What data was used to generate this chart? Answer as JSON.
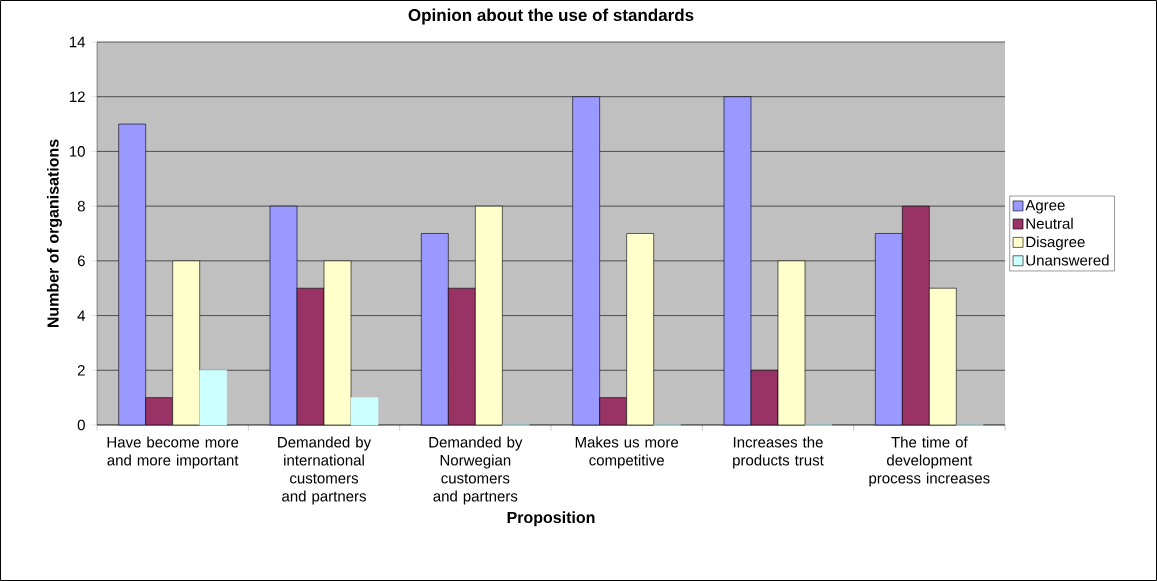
{
  "chart_data": {
    "type": "bar",
    "title": "Opinion about the use of standards",
    "xlabel": "Proposition",
    "ylabel": "Number of organisations",
    "categories": [
      "Have become more and more important",
      "Demanded by international customers and partners",
      "Demanded by Norwegian customers and partners",
      "Makes us more competitive",
      "Increases the products trust",
      "The time of development process increases"
    ],
    "series": [
      {
        "name": "Agree",
        "color": "#9999ff",
        "values": [
          11,
          8,
          7,
          12,
          12,
          7
        ]
      },
      {
        "name": "Neutral",
        "color": "#993366",
        "values": [
          1,
          5,
          5,
          1,
          2,
          8
        ]
      },
      {
        "name": "Disagree",
        "color": "#ffffcc",
        "values": [
          6,
          6,
          8,
          7,
          6,
          5
        ]
      },
      {
        "name": "Unanswered",
        "color": "#ccffff",
        "values": [
          2,
          1,
          0,
          0,
          0,
          0
        ]
      }
    ],
    "ylim": [
      0,
      14
    ],
    "yticks": [
      0,
      2,
      4,
      6,
      8,
      10,
      12,
      14
    ],
    "grid": "y",
    "legend": "right"
  }
}
